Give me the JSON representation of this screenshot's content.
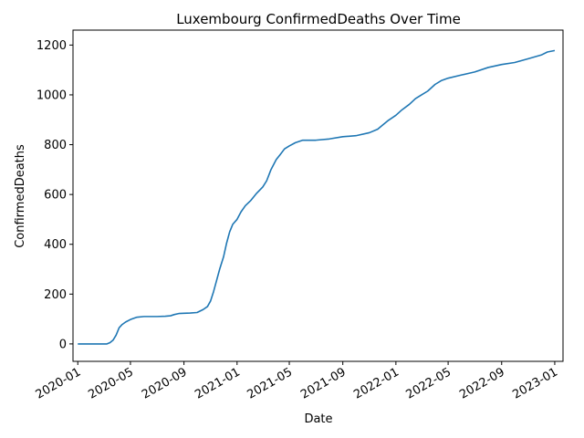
{
  "chart_data": {
    "type": "line",
    "title": "Luxembourg  ConfirmedDeaths Over Time",
    "xlabel": "Date",
    "ylabel": "ConfirmedDeaths",
    "x_ticks": [
      "2020-01",
      "2020-05",
      "2020-09",
      "2021-01",
      "2021-05",
      "2021-09",
      "2022-01",
      "2022-05",
      "2022-09",
      "2023-01"
    ],
    "y_ticks": [
      0,
      200,
      400,
      600,
      800,
      1000,
      1200
    ],
    "xlim": [
      "2019-12-21",
      "2023-01-20"
    ],
    "ylim": [
      -70,
      1260
    ],
    "grid": false,
    "legend": "none",
    "series": [
      {
        "color": "#1f77b4",
        "points": [
          [
            "2020-01-01",
            0
          ],
          [
            "2020-02-01",
            0
          ],
          [
            "2020-03-01",
            0
          ],
          [
            "2020-03-08",
            0
          ],
          [
            "2020-03-15",
            5
          ],
          [
            "2020-03-22",
            15
          ],
          [
            "2020-03-29",
            35
          ],
          [
            "2020-04-05",
            65
          ],
          [
            "2020-04-12",
            78
          ],
          [
            "2020-04-20",
            88
          ],
          [
            "2020-05-01",
            98
          ],
          [
            "2020-05-15",
            107
          ],
          [
            "2020-06-01",
            110
          ],
          [
            "2020-07-01",
            110
          ],
          [
            "2020-07-20",
            111
          ],
          [
            "2020-08-01",
            113
          ],
          [
            "2020-08-10",
            118
          ],
          [
            "2020-08-20",
            122
          ],
          [
            "2020-09-01",
            123
          ],
          [
            "2020-09-15",
            124
          ],
          [
            "2020-10-01",
            126
          ],
          [
            "2020-10-15",
            138
          ],
          [
            "2020-10-25",
            150
          ],
          [
            "2020-11-01",
            172
          ],
          [
            "2020-11-08",
            210
          ],
          [
            "2020-11-15",
            255
          ],
          [
            "2020-11-22",
            300
          ],
          [
            "2020-12-01",
            350
          ],
          [
            "2020-12-08",
            405
          ],
          [
            "2020-12-15",
            450
          ],
          [
            "2020-12-22",
            480
          ],
          [
            "2021-01-01",
            500
          ],
          [
            "2021-01-10",
            530
          ],
          [
            "2021-01-20",
            555
          ],
          [
            "2021-02-01",
            575
          ],
          [
            "2021-02-15",
            605
          ],
          [
            "2021-03-01",
            630
          ],
          [
            "2021-03-10",
            655
          ],
          [
            "2021-03-20",
            700
          ],
          [
            "2021-04-01",
            740
          ],
          [
            "2021-04-10",
            760
          ],
          [
            "2021-04-20",
            783
          ],
          [
            "2021-05-01",
            795
          ],
          [
            "2021-05-15",
            808
          ],
          [
            "2021-06-01",
            818
          ],
          [
            "2021-07-01",
            818
          ],
          [
            "2021-08-01",
            823
          ],
          [
            "2021-09-01",
            832
          ],
          [
            "2021-10-01",
            836
          ],
          [
            "2021-11-01",
            848
          ],
          [
            "2021-11-20",
            862
          ],
          [
            "2021-12-01",
            878
          ],
          [
            "2021-12-15",
            898
          ],
          [
            "2022-01-01",
            918
          ],
          [
            "2022-01-15",
            940
          ],
          [
            "2022-02-01",
            962
          ],
          [
            "2022-02-15",
            985
          ],
          [
            "2022-03-01",
            1000
          ],
          [
            "2022-03-15",
            1015
          ],
          [
            "2022-04-01",
            1042
          ],
          [
            "2022-04-15",
            1057
          ],
          [
            "2022-05-01",
            1067
          ],
          [
            "2022-06-01",
            1080
          ],
          [
            "2022-07-01",
            1092
          ],
          [
            "2022-08-01",
            1110
          ],
          [
            "2022-09-01",
            1122
          ],
          [
            "2022-10-01",
            1130
          ],
          [
            "2022-11-01",
            1145
          ],
          [
            "2022-12-01",
            1160
          ],
          [
            "2022-12-15",
            1172
          ],
          [
            "2023-01-01",
            1178
          ]
        ]
      }
    ]
  }
}
